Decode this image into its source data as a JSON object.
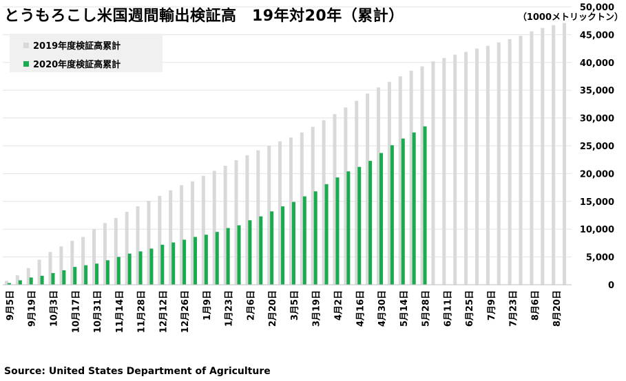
{
  "chart_data": {
    "type": "bar",
    "title": "とうもろこし米国週間輸出検証高　19年対20年（累計）",
    "unit_label": "（1000メトリックトン）",
    "source": "Source: United States Department of Agriculture",
    "ylim": [
      0,
      50000
    ],
    "yticks": [
      "0",
      "5,000",
      "10,000",
      "15,000",
      "20,000",
      "25,000",
      "30,000",
      "35,000",
      "40,000",
      "45,000",
      "50,000"
    ],
    "ytick_values": [
      0,
      5000,
      10000,
      15000,
      20000,
      25000,
      30000,
      35000,
      40000,
      45000,
      50000
    ],
    "legend_position": "top-left",
    "xtick_labels": [
      "9月5日",
      "9月19日",
      "10月3日",
      "10月17日",
      "10月31日",
      "11月14日",
      "11月28日",
      "12月12日",
      "12月26日",
      "1月9日",
      "1月23日",
      "2月6日",
      "2月20日",
      "3月5日",
      "3月19日",
      "4月2日",
      "4月16日",
      "4月30日",
      "5月14日",
      "5月28日",
      "6月11日",
      "6月25日",
      "7月9日",
      "7月23日",
      "8月6日",
      "8月20日"
    ],
    "series": [
      {
        "name": "2019年度検証高累計",
        "color": "#d9d9d9",
        "values": [
          700,
          1700,
          3000,
          4500,
          5900,
          6900,
          7900,
          8600,
          10000,
          11100,
          12000,
          13100,
          14100,
          15100,
          16000,
          17000,
          17900,
          18600,
          19600,
          20500,
          21400,
          22400,
          23300,
          24200,
          25000,
          25800,
          26500,
          27400,
          28400,
          29600,
          30700,
          31900,
          33100,
          34400,
          35500,
          36500,
          37500,
          38500,
          39300,
          40200,
          40800,
          41400,
          41900,
          42500,
          43000,
          43600,
          44200,
          44800,
          45600,
          46200,
          46700,
          47100
        ]
      },
      {
        "name": "2020年度検証高累計",
        "color": "#1aaa50",
        "values": [
          300,
          800,
          1300,
          1600,
          2100,
          2600,
          3200,
          3500,
          3800,
          4400,
          5000,
          5600,
          6000,
          6500,
          7200,
          7600,
          8100,
          8600,
          9000,
          9500,
          10200,
          10700,
          11600,
          12300,
          13200,
          14100,
          14900,
          15900,
          16800,
          18100,
          19300,
          20400,
          21200,
          22300,
          23700,
          25100,
          26300,
          27400,
          28500
        ]
      }
    ]
  }
}
